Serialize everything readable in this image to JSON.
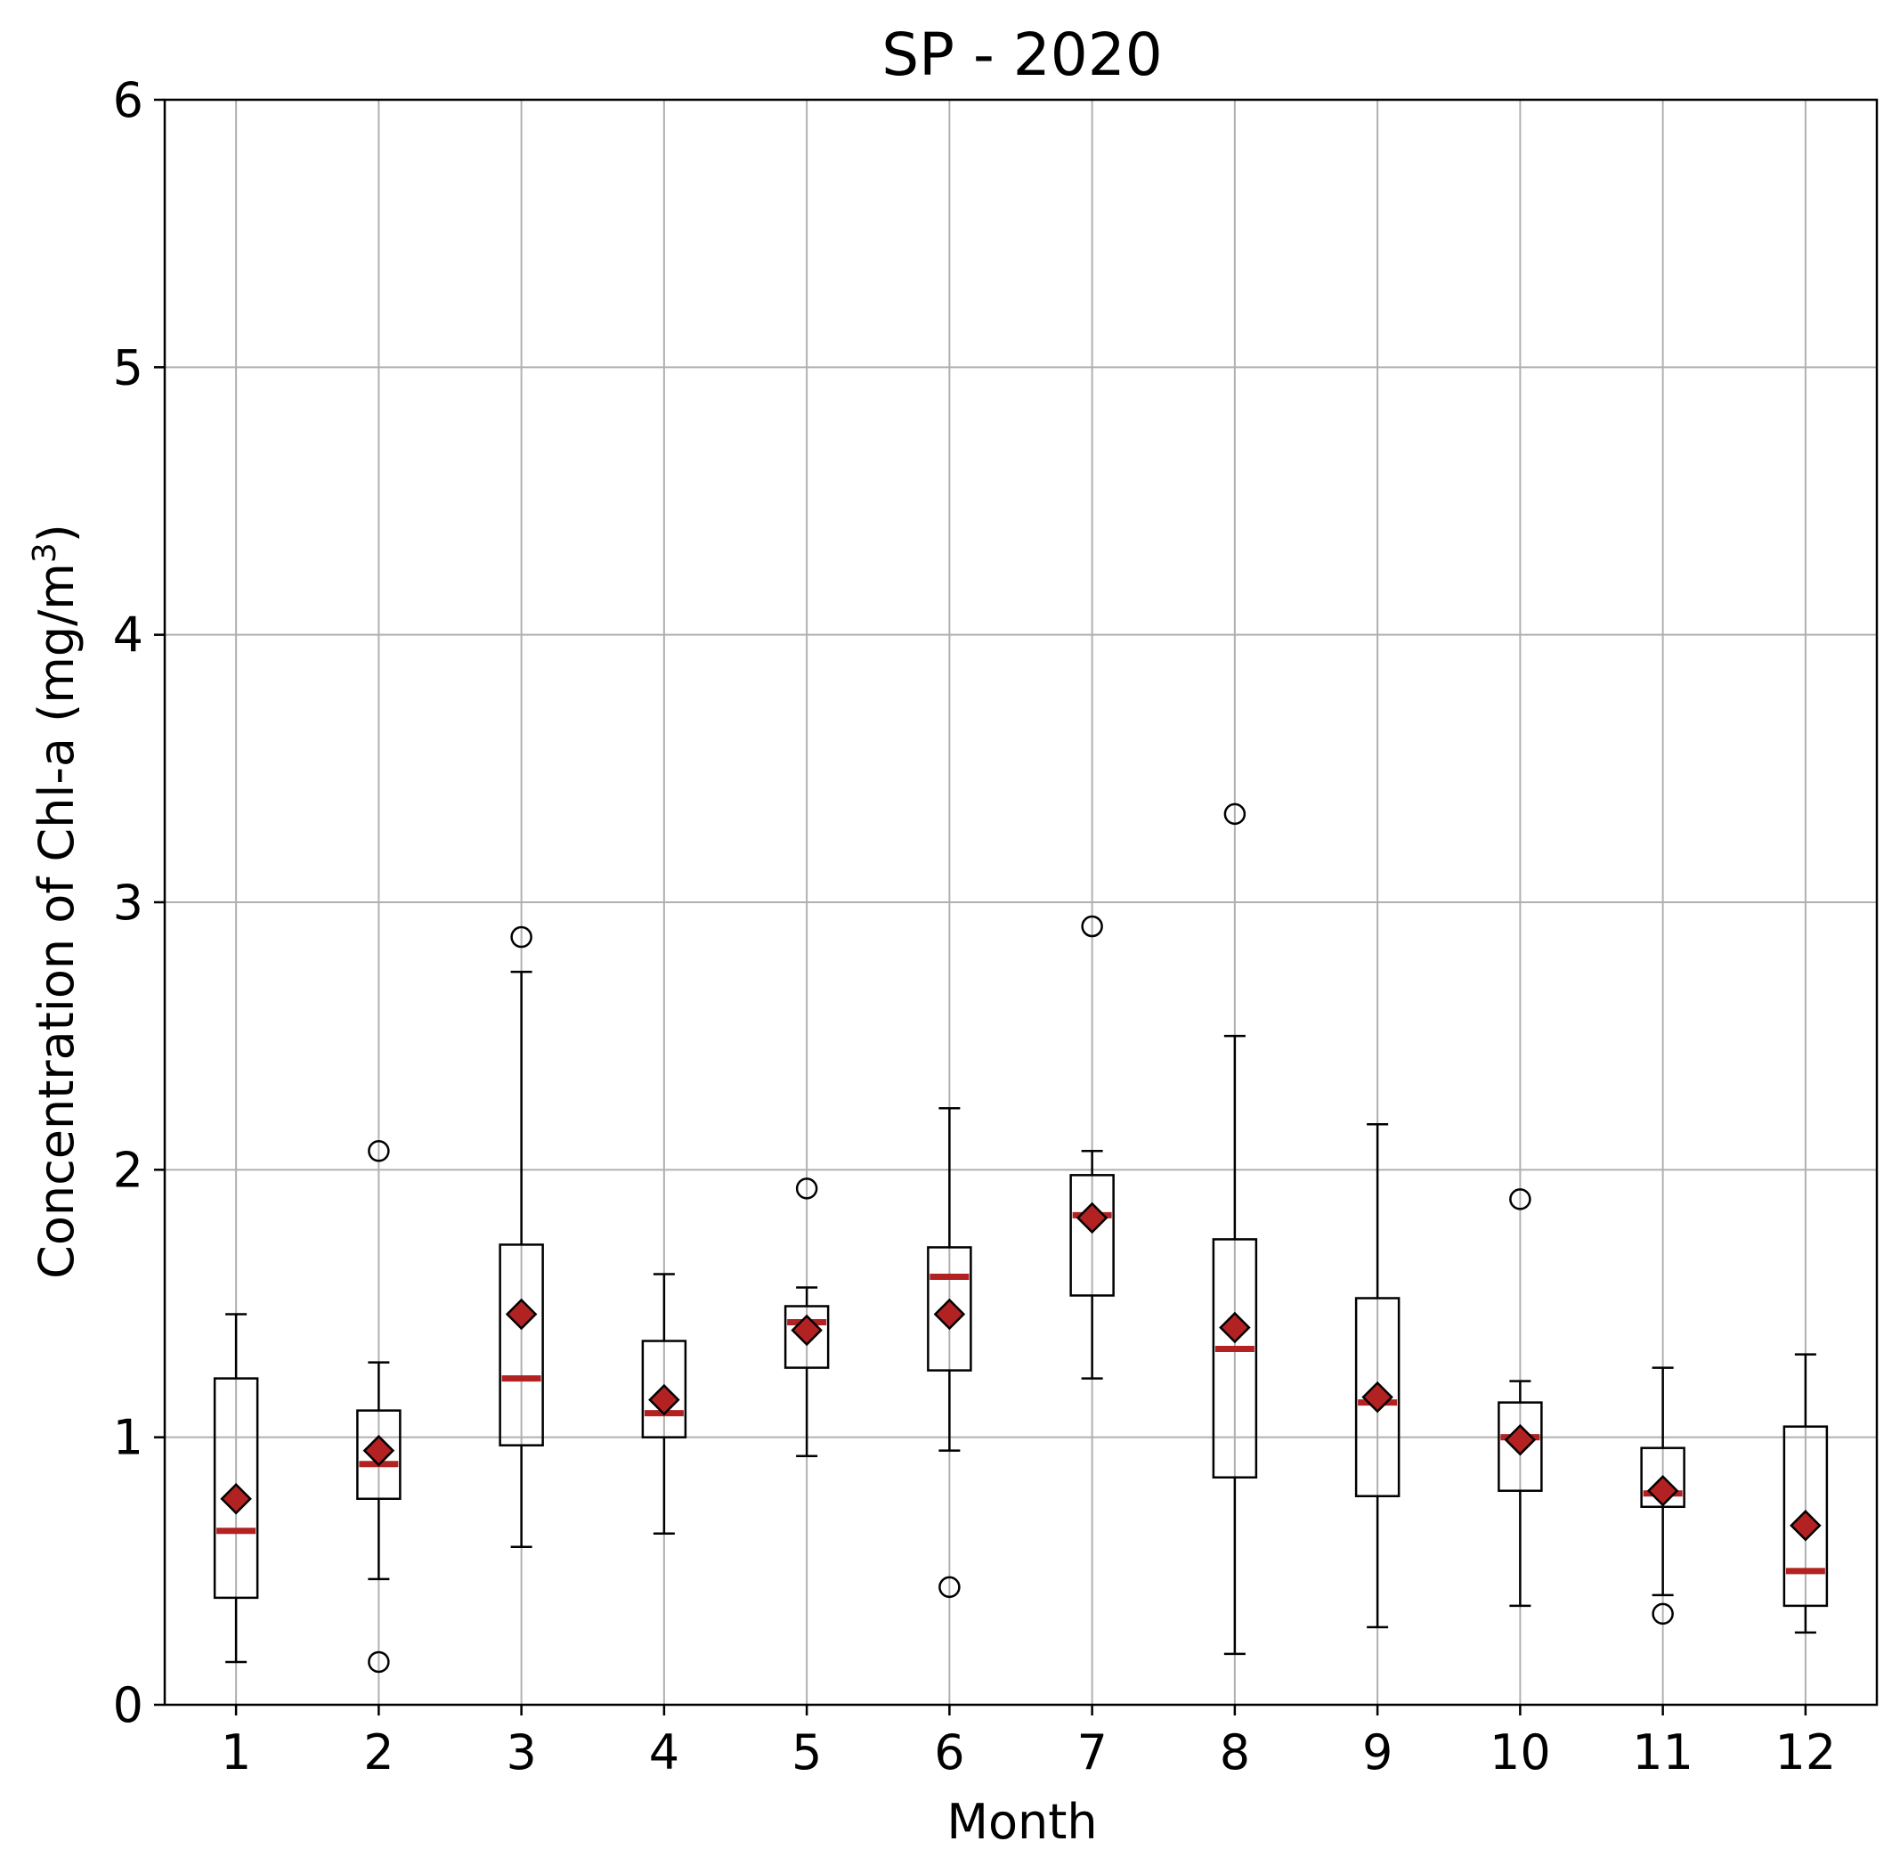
{
  "chart_data": {
    "type": "boxplot",
    "title": "SP - 2020",
    "xlabel": "Month",
    "ylabel": "Concentration of Chl-a (mg/m",
    "ylabel_sup": "3",
    "ylabel_close": ")",
    "ylim": [
      0,
      6
    ],
    "yticks": [
      0,
      1,
      2,
      3,
      4,
      5,
      6
    ],
    "ytick_labels": [
      "0",
      "1",
      "2",
      "3",
      "4",
      "5",
      "6"
    ],
    "categories": [
      "1",
      "2",
      "3",
      "4",
      "5",
      "6",
      "7",
      "8",
      "9",
      "10",
      "11",
      "12"
    ],
    "grid": true,
    "colors": {
      "box": "#000000",
      "median": "#b22222",
      "mean_marker": "#b22222",
      "grid": "#b0b0b0"
    },
    "boxes": [
      {
        "month": "1",
        "whisker_low": 0.16,
        "q1": 0.4,
        "median": 0.65,
        "q3": 1.22,
        "whisker_high": 1.46,
        "mean": 0.77,
        "outliers": []
      },
      {
        "month": "2",
        "whisker_low": 0.47,
        "q1": 0.77,
        "median": 0.9,
        "q3": 1.1,
        "whisker_high": 1.28,
        "mean": 0.95,
        "outliers": [
          2.07,
          0.16
        ]
      },
      {
        "month": "3",
        "whisker_low": 0.59,
        "q1": 0.97,
        "median": 1.22,
        "q3": 1.72,
        "whisker_high": 2.74,
        "mean": 1.46,
        "outliers": [
          2.87
        ]
      },
      {
        "month": "4",
        "whisker_low": 0.64,
        "q1": 1.0,
        "median": 1.09,
        "q3": 1.36,
        "whisker_high": 1.61,
        "mean": 1.14,
        "outliers": []
      },
      {
        "month": "5",
        "whisker_low": 0.93,
        "q1": 1.26,
        "median": 1.43,
        "q3": 1.49,
        "whisker_high": 1.56,
        "mean": 1.4,
        "outliers": [
          1.93
        ]
      },
      {
        "month": "6",
        "whisker_low": 0.95,
        "q1": 1.25,
        "median": 1.6,
        "q3": 1.71,
        "whisker_high": 2.23,
        "mean": 1.46,
        "outliers": [
          0.44
        ]
      },
      {
        "month": "7",
        "whisker_low": 1.22,
        "q1": 1.53,
        "median": 1.83,
        "q3": 1.98,
        "whisker_high": 2.07,
        "mean": 1.82,
        "outliers": [
          2.91
        ]
      },
      {
        "month": "8",
        "whisker_low": 0.19,
        "q1": 0.85,
        "median": 1.33,
        "q3": 1.74,
        "whisker_high": 2.5,
        "mean": 1.41,
        "outliers": [
          3.33
        ]
      },
      {
        "month": "9",
        "whisker_low": 0.29,
        "q1": 0.78,
        "median": 1.13,
        "q3": 1.52,
        "whisker_high": 2.17,
        "mean": 1.15,
        "outliers": []
      },
      {
        "month": "10",
        "whisker_low": 0.37,
        "q1": 0.8,
        "median": 1.0,
        "q3": 1.13,
        "whisker_high": 1.21,
        "mean": 0.99,
        "outliers": [
          1.89
        ]
      },
      {
        "month": "11",
        "whisker_low": 0.41,
        "q1": 0.74,
        "median": 0.79,
        "q3": 0.96,
        "whisker_high": 1.26,
        "mean": 0.8,
        "outliers": [
          0.34
        ]
      },
      {
        "month": "12",
        "whisker_low": 0.27,
        "q1": 0.37,
        "median": 0.5,
        "q3": 1.04,
        "whisker_high": 1.31,
        "mean": 0.67,
        "outliers": []
      }
    ]
  }
}
